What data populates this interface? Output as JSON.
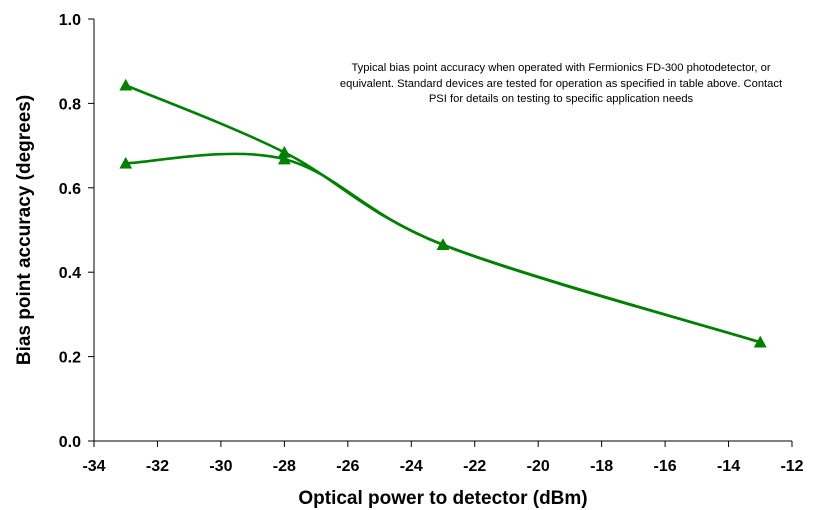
{
  "chart_data": {
    "type": "line",
    "title": "",
    "xlabel": "Optical power to detector (dBm)",
    "ylabel": "Bias point accuracy (degrees)",
    "xlim": [
      -34,
      -12
    ],
    "ylim": [
      0.0,
      1.0
    ],
    "xticks": [
      -34,
      -32,
      -30,
      -28,
      -26,
      -24,
      -22,
      -20,
      -18,
      -16,
      -14,
      -12
    ],
    "yticks": [
      "0.0",
      "0.2",
      "0.4",
      "0.6",
      "0.8",
      "1.0"
    ],
    "grid": false,
    "legend": "none",
    "series": [
      {
        "color": "#008000",
        "marker": "triangle",
        "smooth": true,
        "points": [
          [
            -33,
            0.843
          ],
          [
            -28,
            0.684
          ],
          [
            -23,
            0.465
          ],
          [
            -13,
            0.234
          ]
        ]
      },
      {
        "color": "#008000",
        "marker": "triangle",
        "smooth": true,
        "points": [
          [
            -33,
            0.658
          ],
          [
            -28,
            0.668
          ],
          [
            -23,
            0.465
          ],
          [
            -13,
            0.234
          ]
        ]
      }
    ],
    "annotation": "Typical bias point accuracy when operated with Fermionics FD-300 photodetector, or equivalent. Standard devices are tested for operation as specified in table above. Contact PSI for details on testing to specific application needs"
  }
}
